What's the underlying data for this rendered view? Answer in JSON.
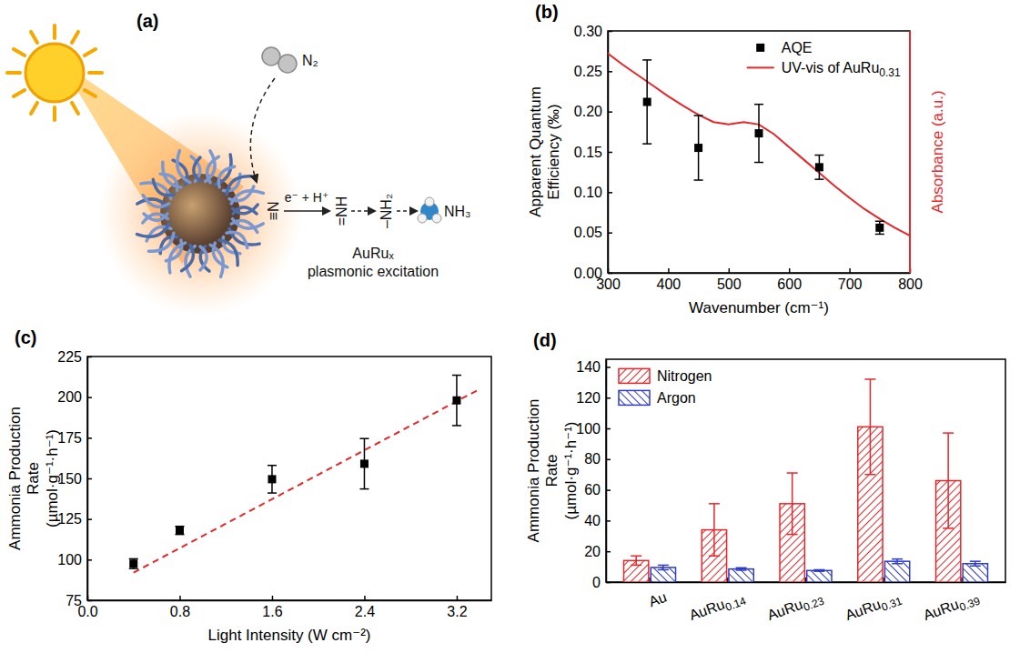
{
  "chart_data": [
    {
      "type": "scatter",
      "title": "(b)",
      "x_label": "Wavenumber (cm⁻¹)",
      "y_label": "Apparent Quantum Efficiency (‰)",
      "y2_label": "Absorbance (a.u.)",
      "xlim": [
        300,
        800
      ],
      "xticks": [
        300,
        400,
        500,
        600,
        700,
        800
      ],
      "ylim": [
        0,
        0.3
      ],
      "yticks": [
        {
          "value": 0,
          "label": "0.00"
        },
        0.05,
        {
          "value": 0.1,
          "label": "0.10"
        },
        0.15,
        {
          "value": 0.2,
          "label": "0.20"
        },
        0.25,
        {
          "value": 0.3,
          "label": "0.30"
        }
      ],
      "y2lim": [
        0,
        0.3
      ],
      "legend": "upper right",
      "series": [
        {
          "name": "AQE",
          "type": "scatter",
          "marker": "square",
          "color": "#000000",
          "x": [
            365,
            450,
            550,
            650,
            750
          ],
          "values": [
            0.212,
            0.155,
            0.173,
            0.131,
            0.056
          ],
          "errors": [
            0.052,
            0.04,
            0.036,
            0.015,
            0.008
          ]
        },
        {
          "name": "UV-vis of AuRu0.31",
          "type": "line",
          "color": "#e8262a",
          "axis": "y2",
          "x": [
            300,
            325,
            350,
            375,
            400,
            425,
            450,
            475,
            500,
            525,
            550,
            575,
            600,
            625,
            650,
            675,
            700,
            725,
            750,
            775,
            800
          ],
          "values": [
            0.272,
            0.258,
            0.245,
            0.232,
            0.219,
            0.207,
            0.196,
            0.187,
            0.184,
            0.187,
            0.184,
            0.172,
            0.156,
            0.14,
            0.124,
            0.108,
            0.093,
            0.079,
            0.067,
            0.056,
            0.046
          ]
        }
      ]
    },
    {
      "type": "scatter",
      "title": "(c)",
      "x_label": "Light Intensity (W cm⁻²)",
      "y_label": "Ammonia Production Rate (µmol·g⁻¹·h⁻¹)",
      "xlim": [
        0,
        3.5
      ],
      "xticks": [
        {
          "value": 0,
          "label": "0.0"
        },
        0.8,
        1.6,
        2.4,
        3.2
      ],
      "ylim": [
        75,
        225
      ],
      "yticks": [
        75,
        100,
        125,
        150,
        175,
        200,
        225
      ],
      "series": [
        {
          "type": "scatter",
          "marker": "square",
          "color": "#000000",
          "x": [
            0.4,
            0.8,
            1.6,
            2.4,
            3.2
          ],
          "values": [
            97.5,
            118,
            149.5,
            159,
            198
          ],
          "errors": [
            3,
            2.5,
            8.5,
            15.5,
            15.5
          ]
        },
        {
          "type": "line",
          "line_style": "dashed",
          "color": "#e8262a",
          "x": [
            0.4,
            3.4
          ],
          "values": [
            92,
            205
          ]
        }
      ]
    },
    {
      "type": "bar",
      "title": "(d)",
      "y_label": "Ammonia Production Rate (µmol·g⁻¹·h⁻¹)",
      "categories": [
        "Au",
        "AuRu0.14",
        "AuRu0.23",
        "AuRu0.31",
        "AuRu0.39"
      ],
      "ylim": [
        0,
        145
      ],
      "yticks": [
        0,
        20,
        40,
        60,
        80,
        100,
        120,
        140
      ],
      "legend": "upper left",
      "series": [
        {
          "name": "Nitrogen",
          "color": "#e8262a",
          "values": [
            14,
            34,
            51,
            101,
            66
          ],
          "errors": [
            3,
            17,
            20,
            31,
            31
          ]
        },
        {
          "name": "Argon",
          "color": "#2e3cc8",
          "values": [
            9.5,
            8.5,
            7.5,
            13.5,
            12
          ],
          "errors": [
            1.5,
            0.8,
            0.5,
            1.5,
            1.5
          ]
        }
      ]
    }
  ],
  "diagram": {
    "title": "(a)",
    "labels": {
      "molecule": "N₂",
      "bound": "≡N",
      "step": "e⁻ + H⁺",
      "imide": "=NH",
      "amide": "–NH₂",
      "product": "NH₃",
      "catalyst": "AuRuₓ",
      "caption": "plasmonic excitation"
    }
  }
}
